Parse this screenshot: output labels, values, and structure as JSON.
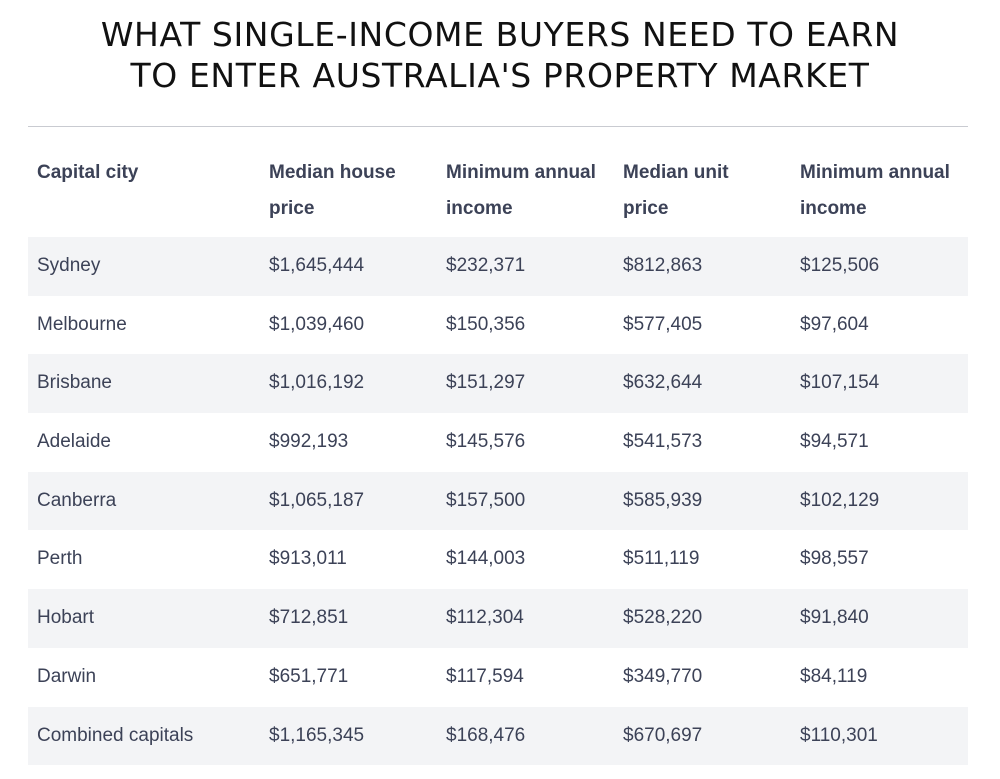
{
  "title": {
    "line1": "WHAT SINGLE-INCOME BUYERS NEED TO EARN",
    "line2": "TO ENTER AUSTRALIA'S PROPERTY MARKET"
  },
  "table": {
    "headers": [
      {
        "line1": "Capital city",
        "line2": ""
      },
      {
        "line1": "Median house",
        "line2": "price"
      },
      {
        "line1": "Minimum annual",
        "line2": "income"
      },
      {
        "line1": "Median unit",
        "line2": "price"
      },
      {
        "line1": "Minimum annual",
        "line2": "income"
      }
    ],
    "rows": [
      {
        "city": "Sydney",
        "house_price": "$1,645,444",
        "house_income": "$232,371",
        "unit_price": "$812,863",
        "unit_income": "$125,506"
      },
      {
        "city": "Melbourne",
        "house_price": "$1,039,460",
        "house_income": "$150,356",
        "unit_price": "$577,405",
        "unit_income": "$97,604"
      },
      {
        "city": "Brisbane",
        "house_price": "$1,016,192",
        "house_income": "$151,297",
        "unit_price": "$632,644",
        "unit_income": "$107,154"
      },
      {
        "city": "Adelaide",
        "house_price": "$992,193",
        "house_income": "$145,576",
        "unit_price": "$541,573",
        "unit_income": "$94,571"
      },
      {
        "city": "Canberra",
        "house_price": "$1,065,187",
        "house_income": "$157,500",
        "unit_price": "$585,939",
        "unit_income": "$102,129"
      },
      {
        "city": "Perth",
        "house_price": "$913,011",
        "house_income": "$144,003",
        "unit_price": "$511,119",
        "unit_income": "$98,557"
      },
      {
        "city": "Hobart",
        "house_price": "$712,851",
        "house_income": "$112,304",
        "unit_price": "$528,220",
        "unit_income": "$91,840"
      },
      {
        "city": "Darwin",
        "house_price": "$651,771",
        "house_income": "$117,594",
        "unit_price": "$349,770",
        "unit_income": "$84,119"
      },
      {
        "city": "Combined capitals",
        "house_price": "$1,165,345",
        "house_income": "$168,476",
        "unit_price": "$670,697",
        "unit_income": "$110,301"
      }
    ]
  },
  "colors": {
    "row_shade": "#f3f4f6",
    "text": "#3c4257",
    "title": "#111111",
    "rule": "#c9cbd1"
  }
}
